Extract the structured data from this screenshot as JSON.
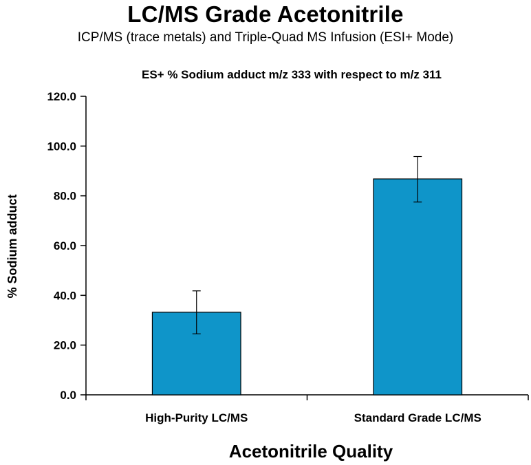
{
  "header": {
    "title": "LC/MS Grade Acetonitrile",
    "subtitle": "ICP/MS (trace metals) and Triple-Quad MS Infusion (ESI+ Mode)"
  },
  "chart_data": {
    "type": "bar",
    "title": "ES+ % Sodium adduct m/z 333 with respect to m/z 311",
    "xlabel": "Acetonitrile Quality",
    "ylabel": "% Sodium adduct",
    "categories": [
      "High-Purity LC/MS",
      "Standard Grade LC/MS"
    ],
    "values": [
      33.2,
      86.8
    ],
    "error_low": [
      24.5,
      77.5
    ],
    "error_high": [
      41.8,
      95.8
    ],
    "ylim": [
      0,
      120
    ],
    "yticks": [
      "0.0",
      "20.0",
      "40.0",
      "60.0",
      "80.0",
      "100.0",
      "120.0"
    ],
    "grid": false,
    "legend": "none",
    "bar_color": "#0f95c9"
  }
}
